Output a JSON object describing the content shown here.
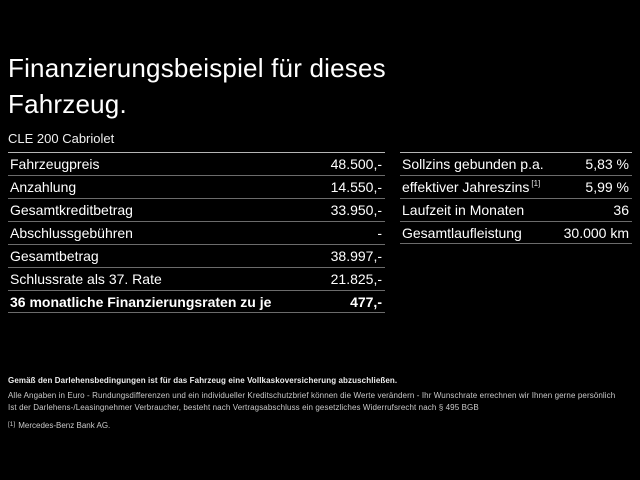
{
  "colors": {
    "background": "#000000",
    "text": "#ffffff",
    "separator": "#6b6b6b",
    "header_separator": "#b5b5b5",
    "footer_text": "#c9c9c9"
  },
  "header": {
    "title_line1": "Finanzierungsbeispiel für dieses",
    "title_line2": "Fahrzeug.",
    "model": "CLE 200 Cabriolet"
  },
  "finance_table": {
    "rows": [
      {
        "label": "Fahrzeugpreis",
        "value": "48.500,-"
      },
      {
        "label": "Anzahlung",
        "value": "14.550,-"
      },
      {
        "label": "Gesamtkreditbetrag",
        "value": "33.950,-"
      },
      {
        "label": "Abschlussgebühren",
        "value": "-"
      },
      {
        "label": "Gesamtbetrag",
        "value": "38.997,-"
      },
      {
        "label": "Schlussrate als 37. Rate",
        "value": "21.825,-"
      },
      {
        "label": "36 monatliche Finanzierungsraten zu je",
        "value": "477,-",
        "bold": true
      }
    ]
  },
  "conditions_table": {
    "rows": [
      {
        "label": "Sollzins gebunden p.a.",
        "value": "5,83 %"
      },
      {
        "label": "effektiver Jahreszins",
        "sup": "[1]",
        "value": "5,99 %"
      },
      {
        "label": "Laufzeit in Monaten",
        "value": "36"
      },
      {
        "label": "Gesamtlaufleistung",
        "value": "30.000 km"
      }
    ]
  },
  "footer": {
    "insurance_note": "Gemäß den Darlehensbedingungen ist für das Fahrzeug eine Vollkaskoversicherung abzuschließen.",
    "note_line2": "Alle Angaben in Euro - Rundungsdifferenzen und ein individueller Kreditschutzbrief können die Werte verändern - Ihr Wunschrate errechnen wir Ihnen gerne persönlich",
    "note_line3": "Ist der Darlehens-/Leasingnehmer Verbraucher, besteht nach Vertragsabschluss ein gesetzliches Widerrufsrecht nach § 495 BGB",
    "footnote_marker": "[1]",
    "footnote_text": "Mercedes-Benz Bank AG."
  }
}
